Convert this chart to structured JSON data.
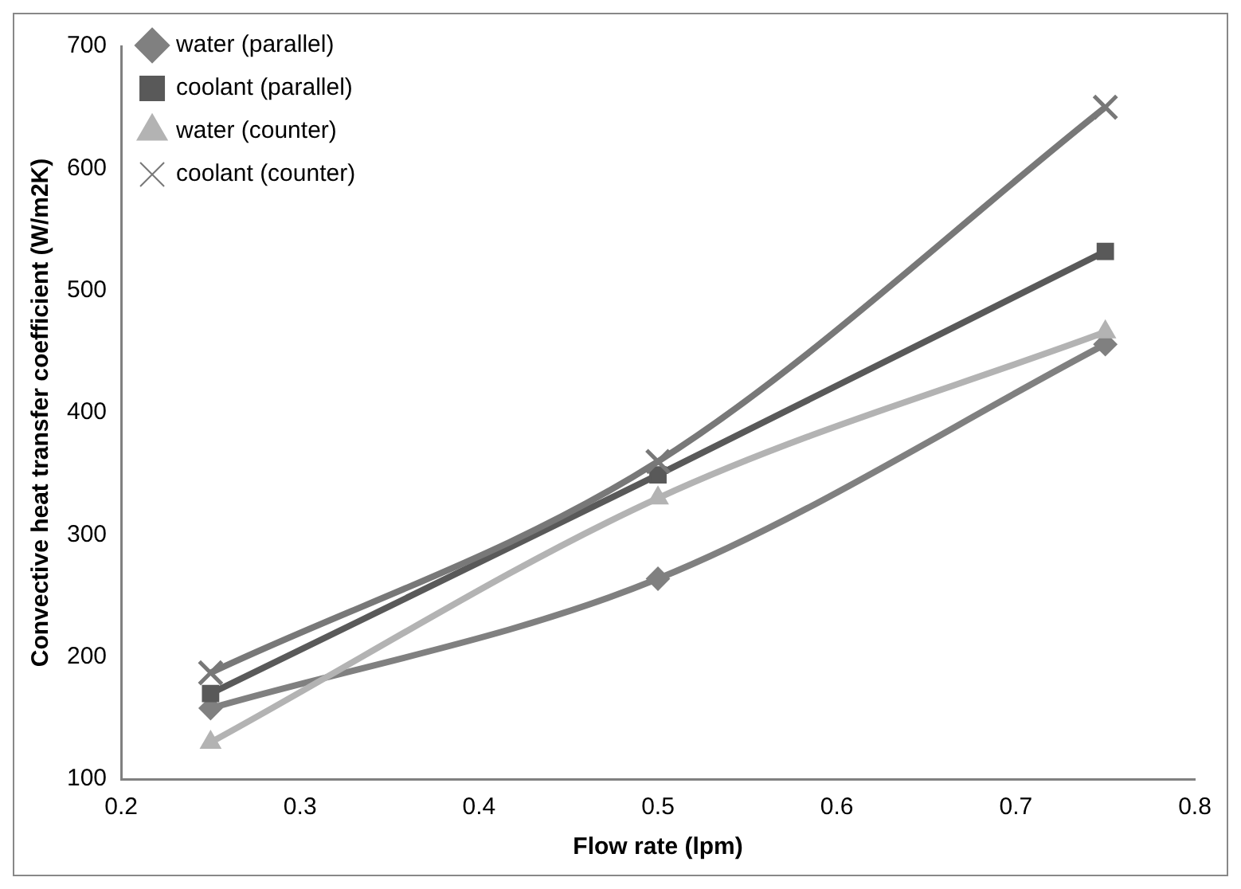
{
  "chart_data": {
    "type": "line",
    "xlabel": "Flow rate (lpm)",
    "ylabel": "Convective heat transfer coefficient (W/m2K)",
    "x": [
      0.25,
      0.5,
      0.75
    ],
    "series": [
      {
        "name": "water (parallel)",
        "color": "#808080",
        "marker": "diamond",
        "values": [
          158,
          264,
          456
        ]
      },
      {
        "name": "coolant (parallel)",
        "color": "#595959",
        "marker": "square",
        "values": [
          170,
          349,
          532
        ]
      },
      {
        "name": "water (counter)",
        "color": "#b3b3b3",
        "marker": "triangle",
        "values": [
          130,
          330,
          466
        ]
      },
      {
        "name": "coolant (counter)",
        "color": "#787878",
        "marker": "cross",
        "values": [
          187,
          360,
          650
        ]
      }
    ],
    "xlim": [
      0.2,
      0.8
    ],
    "xticks": [
      0.2,
      0.3,
      0.4,
      0.5,
      0.6,
      0.7,
      0.8
    ],
    "ylim": [
      100,
      700
    ],
    "yticks": [
      100,
      200,
      300,
      400,
      500,
      600,
      700
    ],
    "grid": false,
    "legend": "top left"
  }
}
